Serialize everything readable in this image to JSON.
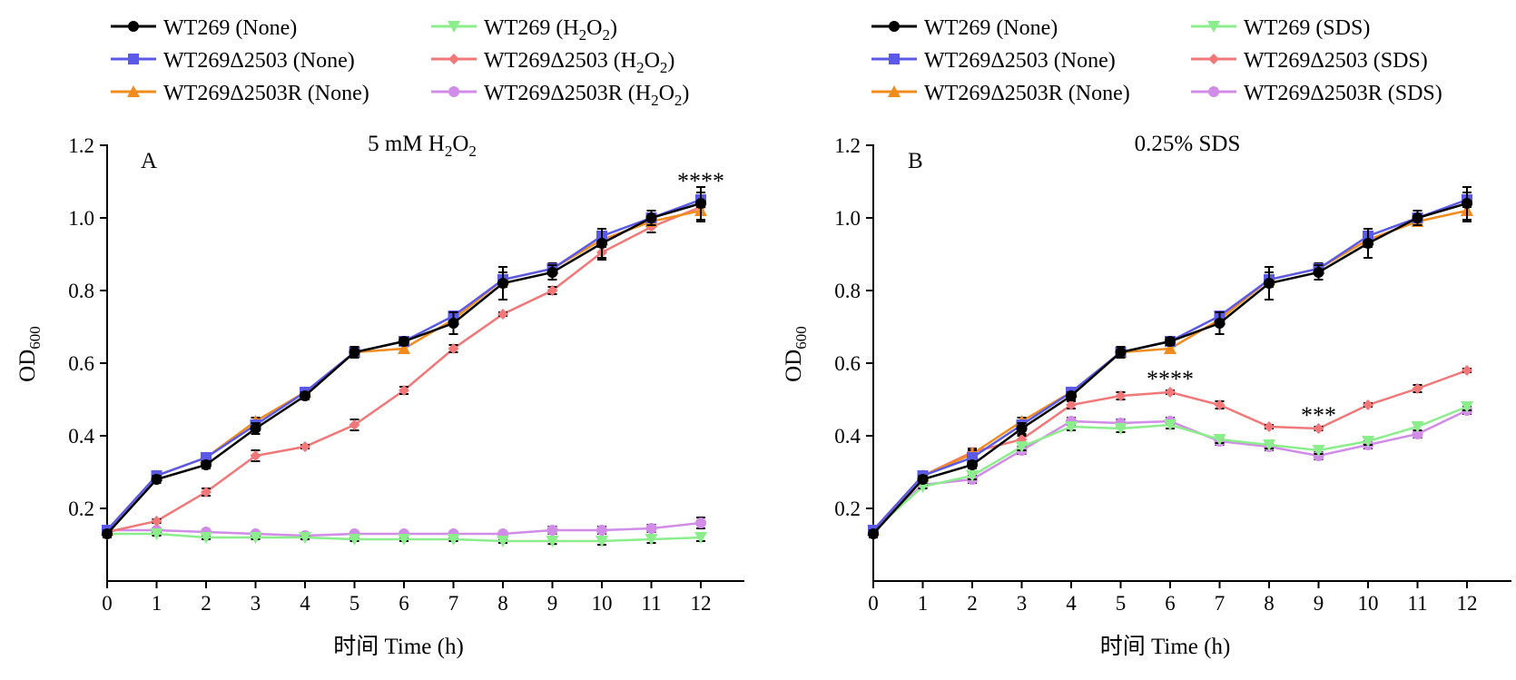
{
  "colors": {
    "wt_none": "#000000",
    "del_none": "#5a5ae6",
    "rev_none": "#f08c1e",
    "wt_stress": "#8ced8c",
    "del_stress": "#f07878",
    "rev_stress": "#d08ce6"
  },
  "chart_data": [
    {
      "type": "line",
      "panel_letter": "A",
      "title": "5 mM H₂O₂",
      "xlabel": "时间 Time (h)",
      "ylabel": "OD600",
      "ylabel_main": "OD",
      "ylabel_sub": "600",
      "xlim": [
        0,
        12.8
      ],
      "ylim": [
        0,
        1.2
      ],
      "xticks": [
        0,
        1,
        2,
        3,
        4,
        5,
        6,
        7,
        8,
        9,
        10,
        11,
        12
      ],
      "yticks": [
        0.2,
        0.4,
        0.6,
        0.8,
        1.0,
        1.2
      ],
      "ytick_labels": [
        "0.2",
        "0.4",
        "0.6",
        "0.8",
        "1.0",
        "1.2"
      ],
      "legend_position": "top",
      "annotations": [
        {
          "text": "****",
          "x": 12,
          "y": 1.11
        }
      ],
      "x": [
        0,
        1,
        2,
        3,
        4,
        5,
        6,
        7,
        8,
        9,
        10,
        11,
        12
      ],
      "series": [
        {
          "name": "WT269 (None)",
          "name_main": "WT269 (None)",
          "color_key": "wt_none",
          "marker": "circle",
          "values": [
            0.13,
            0.28,
            0.32,
            0.42,
            0.51,
            0.63,
            0.66,
            0.71,
            0.82,
            0.85,
            0.93,
            1.0,
            1.04
          ],
          "errors": [
            0.01,
            0.01,
            0.01,
            0.015,
            0.01,
            0.015,
            0.01,
            0.03,
            0.045,
            0.02,
            0.04,
            0.02,
            0.045
          ]
        },
        {
          "name": "WT269Δ2503 (None)",
          "name_main": "WT269Δ2503 (None)",
          "color_key": "del_none",
          "marker": "square",
          "values": [
            0.14,
            0.29,
            0.34,
            0.43,
            0.52,
            0.63,
            0.66,
            0.73,
            0.83,
            0.86,
            0.95,
            1.0,
            1.05
          ],
          "errors": [
            0.01,
            0.01,
            0.01,
            0.01,
            0.01,
            0.01,
            0.01,
            0.01,
            0.02,
            0.015,
            0.02,
            0.01,
            0.02
          ]
        },
        {
          "name": "WT269Δ2503R (None)",
          "name_main": "WT269Δ2503R (None)",
          "color_key": "rev_none",
          "marker": "triangle",
          "values": [
            0.14,
            0.29,
            0.34,
            0.44,
            0.52,
            0.63,
            0.64,
            0.72,
            0.83,
            0.86,
            0.94,
            0.99,
            1.02
          ],
          "errors": [
            0.01,
            0.01,
            0.01,
            0.01,
            0.01,
            0.01,
            0.01,
            0.01,
            0.02,
            0.015,
            0.02,
            0.01,
            0.03
          ]
        },
        {
          "name": "WT269 (H₂O₂)",
          "name_main": "WT269 (H",
          "name_sub": "2",
          "name_mid": "O",
          "name_sub2": "2",
          "name_end": ")",
          "color_key": "wt_stress",
          "marker": "triangle-down",
          "values": [
            0.13,
            0.13,
            0.12,
            0.12,
            0.12,
            0.115,
            0.115,
            0.115,
            0.11,
            0.11,
            0.11,
            0.115,
            0.12
          ],
          "errors": [
            0.005,
            0.005,
            0.005,
            0.005,
            0.005,
            0.005,
            0.005,
            0.005,
            0.005,
            0.008,
            0.01,
            0.01,
            0.01
          ]
        },
        {
          "name": "WT269Δ2503 (H₂O₂)",
          "name_main": "WT269Δ2503 (H",
          "name_sub": "2",
          "name_mid": "O",
          "name_sub2": "2",
          "name_end": ")",
          "color_key": "del_stress",
          "marker": "diamond",
          "values": [
            0.135,
            0.165,
            0.245,
            0.345,
            0.37,
            0.43,
            0.525,
            0.64,
            0.735,
            0.8,
            0.905,
            0.975,
            1.03
          ],
          "errors": [
            0.005,
            0.005,
            0.01,
            0.015,
            0.005,
            0.015,
            0.01,
            0.01,
            0.005,
            0.01,
            0.02,
            0.015,
            0.02
          ]
        },
        {
          "name": "WT269Δ2503R (H₂O₂)",
          "name_main": "WT269Δ2503R (H",
          "name_sub": "2",
          "name_mid": "O",
          "name_sub2": "2",
          "name_end": ")",
          "color_key": "rev_stress",
          "marker": "circle",
          "values": [
            0.14,
            0.14,
            0.135,
            0.13,
            0.125,
            0.13,
            0.13,
            0.13,
            0.13,
            0.14,
            0.14,
            0.145,
            0.16
          ],
          "errors": [
            0.005,
            0.005,
            0.005,
            0.005,
            0.005,
            0.005,
            0.005,
            0.005,
            0.005,
            0.01,
            0.01,
            0.01,
            0.015
          ]
        }
      ]
    },
    {
      "type": "line",
      "panel_letter": "B",
      "title": "0.25% SDS",
      "xlabel": "时间 Time (h)",
      "ylabel": "OD600",
      "ylabel_main": "OD",
      "ylabel_sub": "600",
      "xlim": [
        0,
        12.8
      ],
      "ylim": [
        0,
        1.2
      ],
      "xticks": [
        0,
        1,
        2,
        3,
        4,
        5,
        6,
        7,
        8,
        9,
        10,
        11,
        12
      ],
      "yticks": [
        0.2,
        0.4,
        0.6,
        0.8,
        1.0,
        1.2
      ],
      "ytick_labels": [
        "0.2",
        "0.4",
        "0.6",
        "0.8",
        "1.0",
        "1.2"
      ],
      "legend_position": "top",
      "annotations": [
        {
          "text": "****",
          "x": 6,
          "y": 0.565
        },
        {
          "text": "***",
          "x": 9,
          "y": 0.465
        }
      ],
      "x": [
        0,
        1,
        2,
        3,
        4,
        5,
        6,
        7,
        8,
        9,
        10,
        11,
        12
      ],
      "series": [
        {
          "name": "WT269 (None)",
          "name_main": "WT269 (None)",
          "color_key": "wt_none",
          "marker": "circle",
          "values": [
            0.13,
            0.28,
            0.32,
            0.42,
            0.51,
            0.63,
            0.66,
            0.71,
            0.82,
            0.85,
            0.93,
            1.0,
            1.04
          ],
          "errors": [
            0.01,
            0.01,
            0.01,
            0.015,
            0.01,
            0.015,
            0.01,
            0.03,
            0.045,
            0.02,
            0.04,
            0.02,
            0.045
          ]
        },
        {
          "name": "WT269Δ2503 (None)",
          "name_main": "WT269Δ2503 (None)",
          "color_key": "del_none",
          "marker": "square",
          "values": [
            0.14,
            0.29,
            0.34,
            0.43,
            0.52,
            0.63,
            0.66,
            0.73,
            0.83,
            0.86,
            0.95,
            1.0,
            1.05
          ],
          "errors": [
            0.01,
            0.01,
            0.01,
            0.01,
            0.01,
            0.01,
            0.01,
            0.01,
            0.02,
            0.015,
            0.02,
            0.01,
            0.02
          ]
        },
        {
          "name": "WT269Δ2503R (None)",
          "name_main": "WT269Δ2503R (None)",
          "color_key": "rev_none",
          "marker": "triangle",
          "values": [
            0.14,
            0.29,
            0.35,
            0.44,
            0.52,
            0.63,
            0.64,
            0.72,
            0.83,
            0.86,
            0.94,
            0.99,
            1.02
          ],
          "errors": [
            0.01,
            0.01,
            0.01,
            0.01,
            0.01,
            0.01,
            0.01,
            0.01,
            0.02,
            0.015,
            0.02,
            0.01,
            0.03
          ]
        },
        {
          "name": "WT269 (SDS)",
          "name_main": "WT269 (SDS)",
          "color_key": "wt_stress",
          "marker": "triangle-down",
          "values": [
            0.14,
            0.26,
            0.29,
            0.37,
            0.425,
            0.42,
            0.43,
            0.39,
            0.375,
            0.36,
            0.385,
            0.425,
            0.48
          ],
          "errors": [
            0.005,
            0.005,
            0.01,
            0.01,
            0.01,
            0.01,
            0.01,
            0.01,
            0.01,
            0.01,
            0.01,
            0.01,
            0.01
          ]
        },
        {
          "name": "WT269Δ2503 (SDS)",
          "name_main": "WT269Δ2503 (SDS)",
          "color_key": "del_stress",
          "marker": "diamond",
          "values": [
            0.14,
            0.29,
            0.355,
            0.39,
            0.485,
            0.51,
            0.52,
            0.485,
            0.425,
            0.42,
            0.485,
            0.53,
            0.58
          ],
          "errors": [
            0.005,
            0.01,
            0.01,
            0.01,
            0.01,
            0.01,
            0.005,
            0.01,
            0.005,
            0.005,
            0.005,
            0.01,
            0.005
          ]
        },
        {
          "name": "WT269Δ2503R (SDS)",
          "name_main": "WT269Δ2503R (SDS)",
          "color_key": "rev_stress",
          "marker": "circle",
          "values": [
            0.14,
            0.265,
            0.28,
            0.36,
            0.44,
            0.435,
            0.44,
            0.385,
            0.37,
            0.345,
            0.375,
            0.405,
            0.47
          ],
          "errors": [
            0.005,
            0.005,
            0.01,
            0.01,
            0.01,
            0.01,
            0.01,
            0.01,
            0.01,
            0.01,
            0.01,
            0.01,
            0.01
          ]
        }
      ]
    }
  ]
}
